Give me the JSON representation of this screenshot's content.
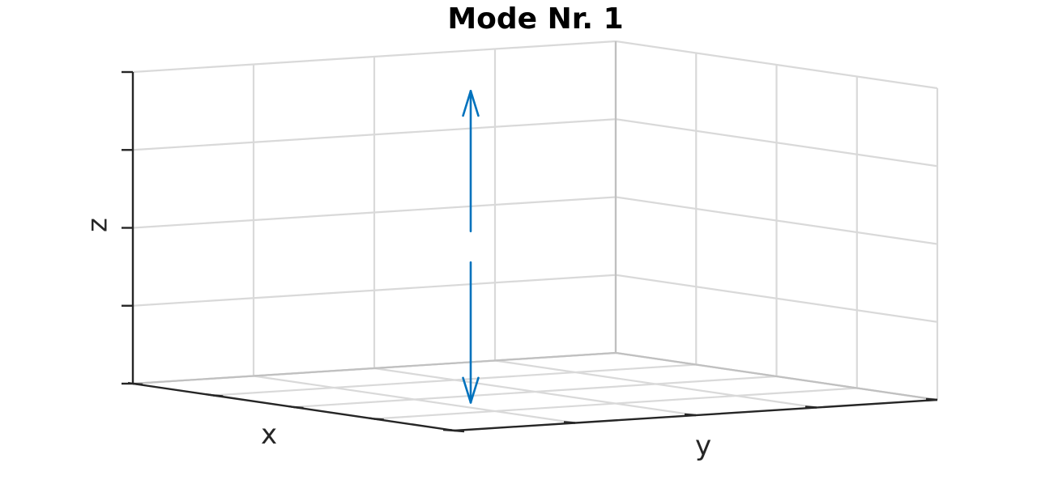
{
  "chart_data": {
    "type": "line",
    "title": "Mode Nr. 1",
    "xlabel": "x",
    "ylabel": "y",
    "zlabel": "z",
    "grid": true,
    "tick_labels_shown": false,
    "series_color": "#0072BD",
    "arrows": [
      {
        "from": [
          0.6,
          0.3,
          0.55
        ],
        "to": [
          0.6,
          0.3,
          1.0
        ],
        "head": "end"
      },
      {
        "from": [
          0.6,
          0.3,
          0.45
        ],
        "to": [
          0.6,
          0.3,
          0.0
        ],
        "head": "end"
      }
    ]
  }
}
